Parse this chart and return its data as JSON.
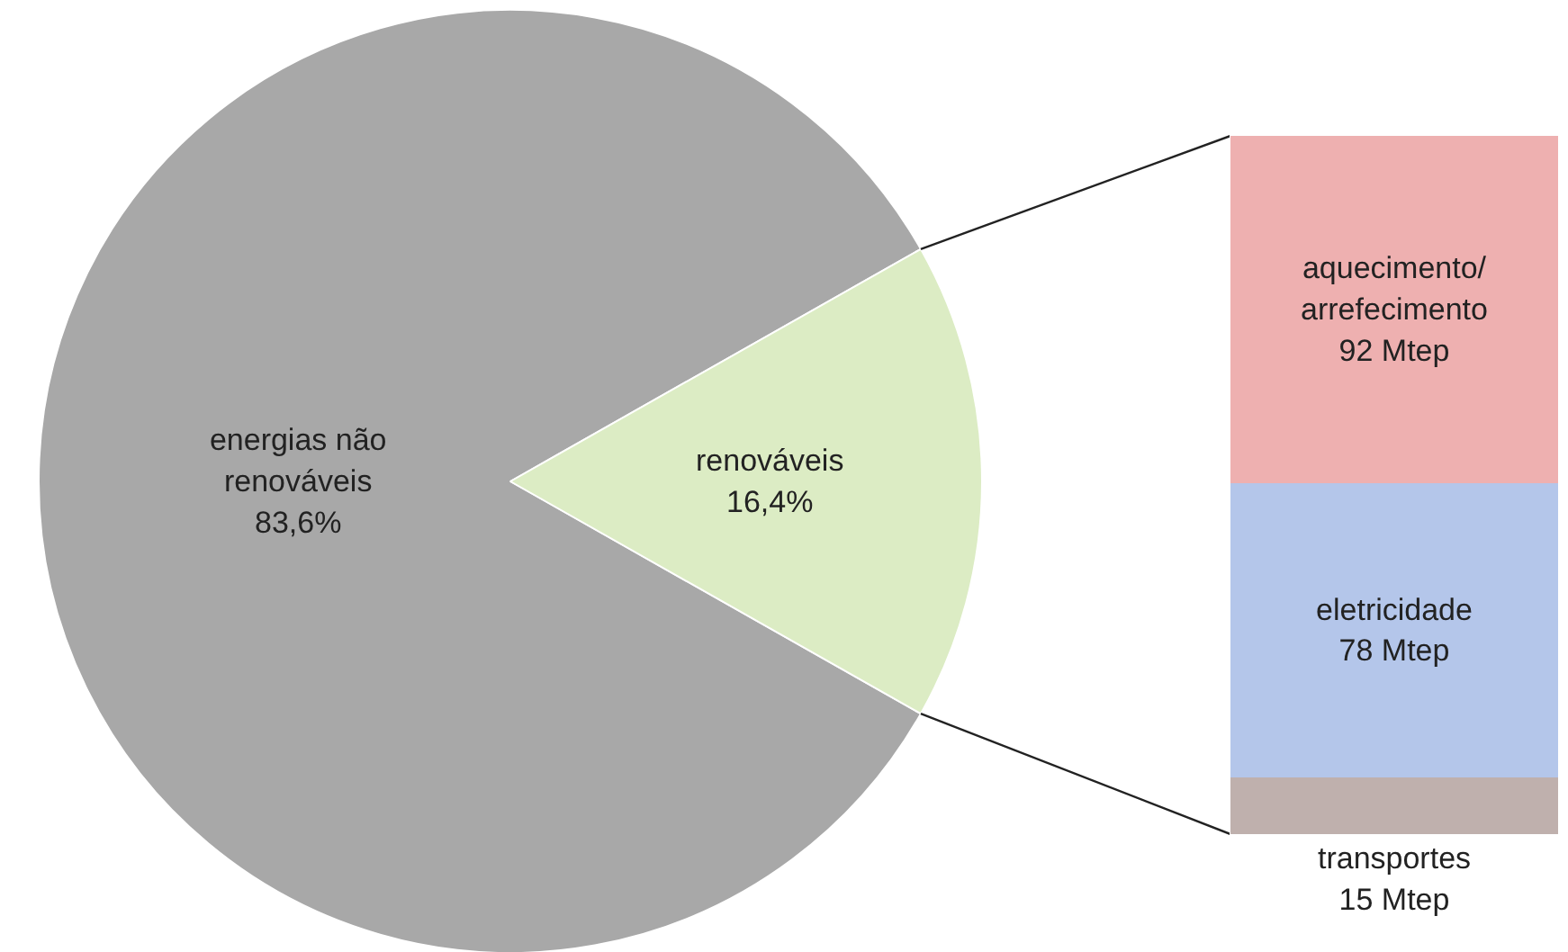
{
  "chart_data": [
    {
      "type": "pie",
      "categories": [
        "energias não renováveis",
        "renováveis"
      ],
      "values": [
        83.6,
        16.4
      ],
      "colors": [
        "#a8a8a8",
        "#dcecc4"
      ],
      "value_labels": [
        "83,6%",
        "16,4%"
      ]
    },
    {
      "type": "bar",
      "stacked": true,
      "categories": [
        null
      ],
      "series": [
        {
          "name": "transportes",
          "color": "#bfb0ad",
          "values": [
            15
          ],
          "value_labels": [
            "15 Mtep"
          ]
        },
        {
          "name": "eletricidade",
          "color": "#b4c6ea",
          "values": [
            78
          ],
          "value_labels": [
            "78 Mtep"
          ]
        },
        {
          "name": "aquecimento/arrefecimento",
          "color": "#eeb0b0",
          "values": [
            92
          ],
          "value_labels": [
            "92 Mtep"
          ]
        }
      ]
    }
  ]
}
